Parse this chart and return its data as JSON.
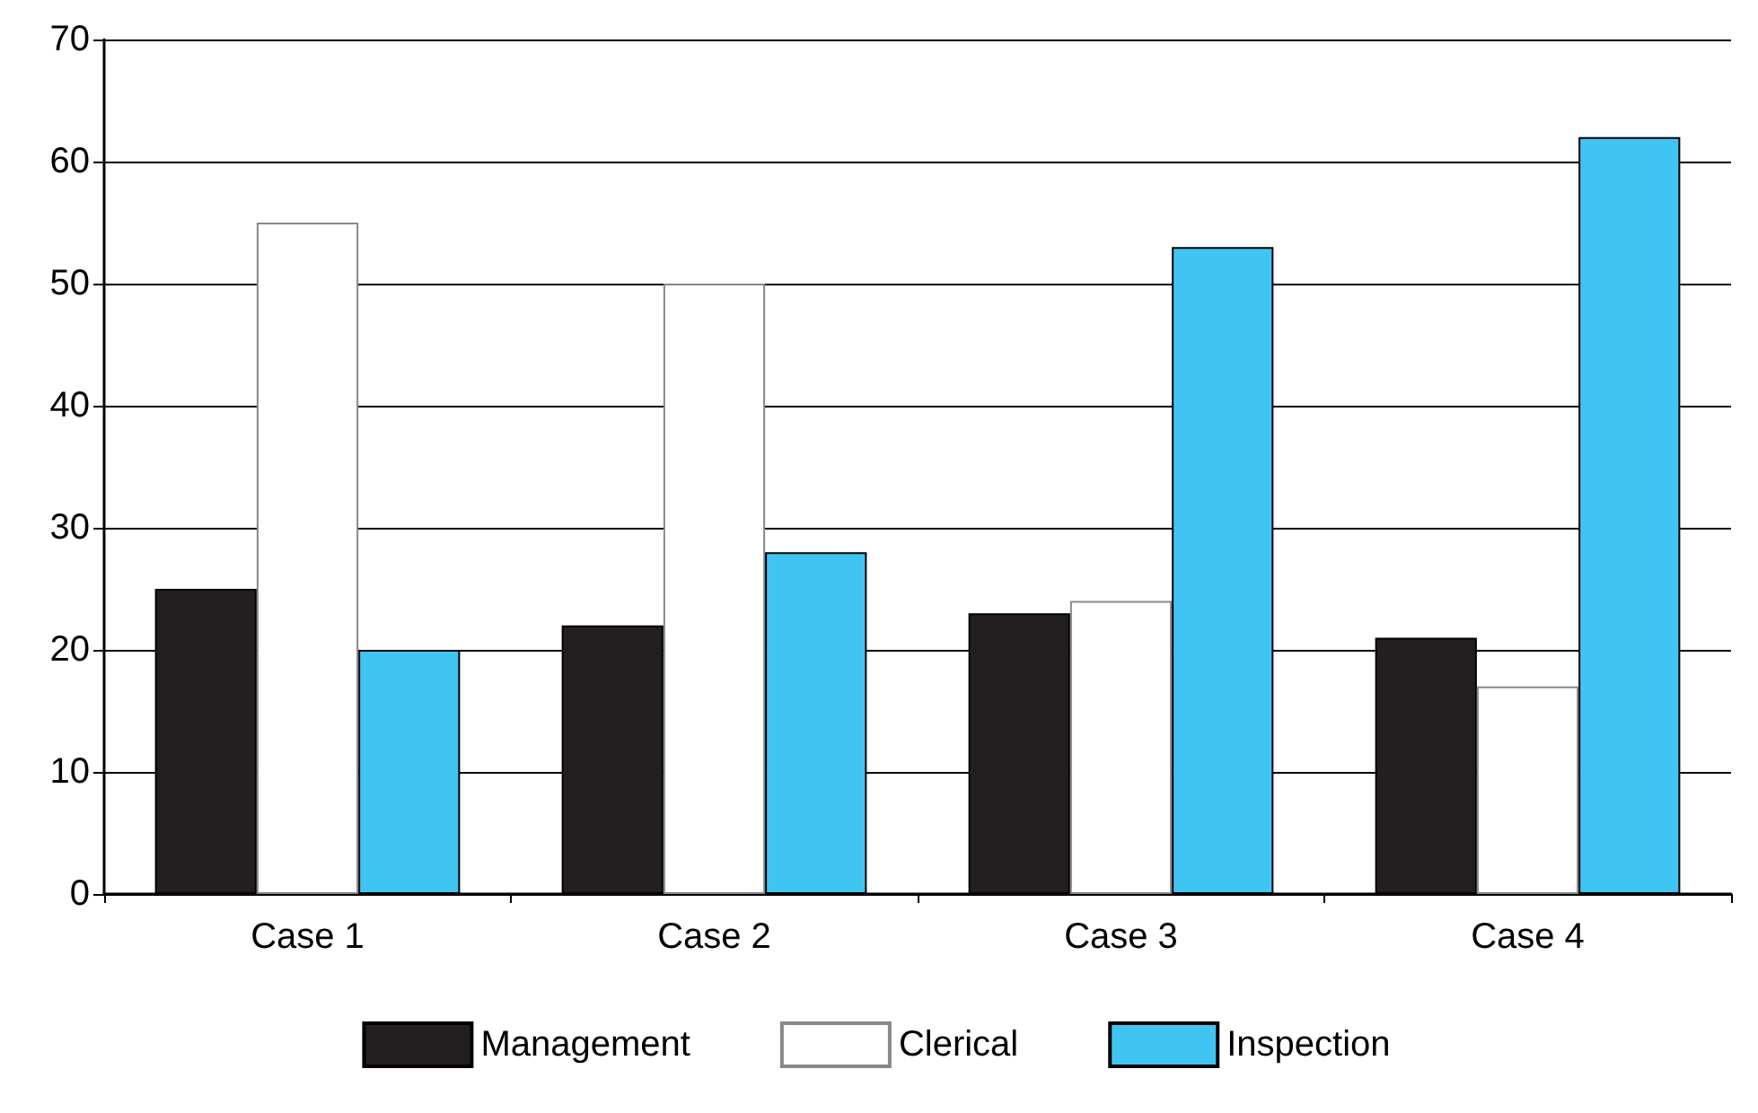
{
  "chart_data": {
    "type": "bar",
    "categories": [
      "Case 1",
      "Case 2",
      "Case 3",
      "Case 4"
    ],
    "series": [
      {
        "name": "Management",
        "color": "#231f20",
        "values": [
          25,
          22,
          23,
          21
        ]
      },
      {
        "name": "Clerical",
        "color": "#ffffff",
        "values": [
          55,
          50,
          24,
          17
        ]
      },
      {
        "name": "Inspection",
        "color": "#40c4f2",
        "values": [
          20,
          28,
          53,
          62
        ]
      }
    ],
    "ylim": [
      0,
      70
    ],
    "yticks": [
      0,
      10,
      20,
      30,
      40,
      50,
      60,
      70
    ],
    "grid": "y",
    "legend": "bottom"
  }
}
